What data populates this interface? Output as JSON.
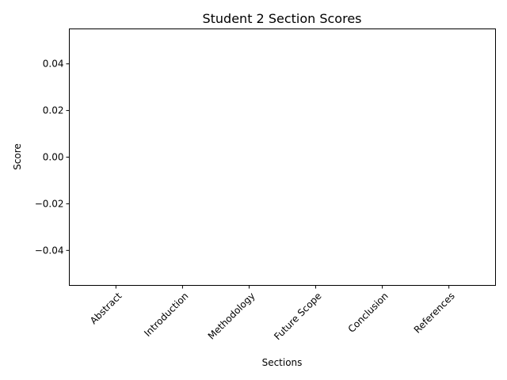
{
  "chart_data": {
    "type": "bar",
    "title": "Student 2 Section Scores",
    "xlabel": "Sections",
    "ylabel": "Score",
    "categories": [
      "Abstract",
      "Introduction",
      "Methodology",
      "Future Scope",
      "Conclusion",
      "References"
    ],
    "values": [
      0,
      0,
      0,
      0,
      0,
      0
    ],
    "ylim": [
      -0.055,
      0.055
    ],
    "yticks": [
      -0.04,
      -0.02,
      0.0,
      0.02,
      0.04
    ],
    "ytick_labels": [
      "−0.04",
      "−0.02",
      "0.00",
      "0.02",
      "0.04"
    ],
    "xtick_rotation_deg": 45,
    "bar_color": "#1f77b4",
    "grid": false,
    "legend": "none"
  }
}
